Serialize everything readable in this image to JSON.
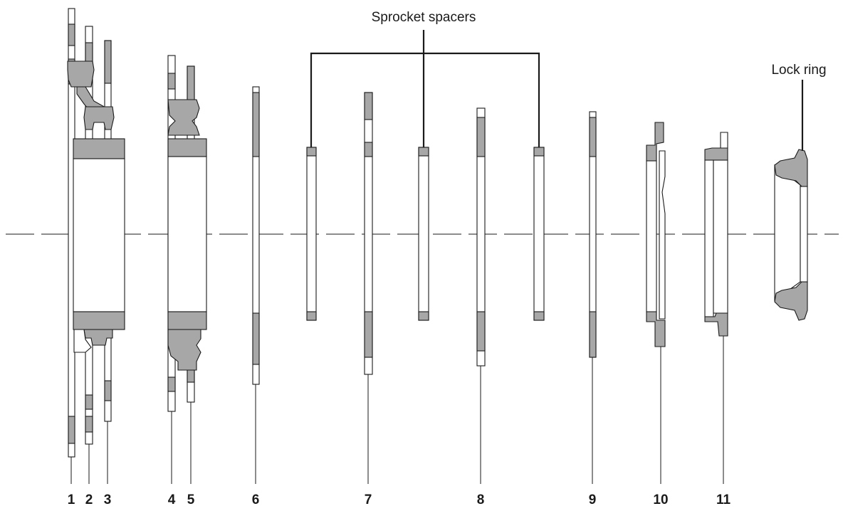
{
  "labels": {
    "sprocket_spacers": "Sprocket spacers",
    "lock_ring": "Lock ring"
  },
  "part_numbers": [
    "1",
    "2",
    "3",
    "4",
    "5",
    "6",
    "7",
    "8",
    "9",
    "10",
    "11"
  ]
}
